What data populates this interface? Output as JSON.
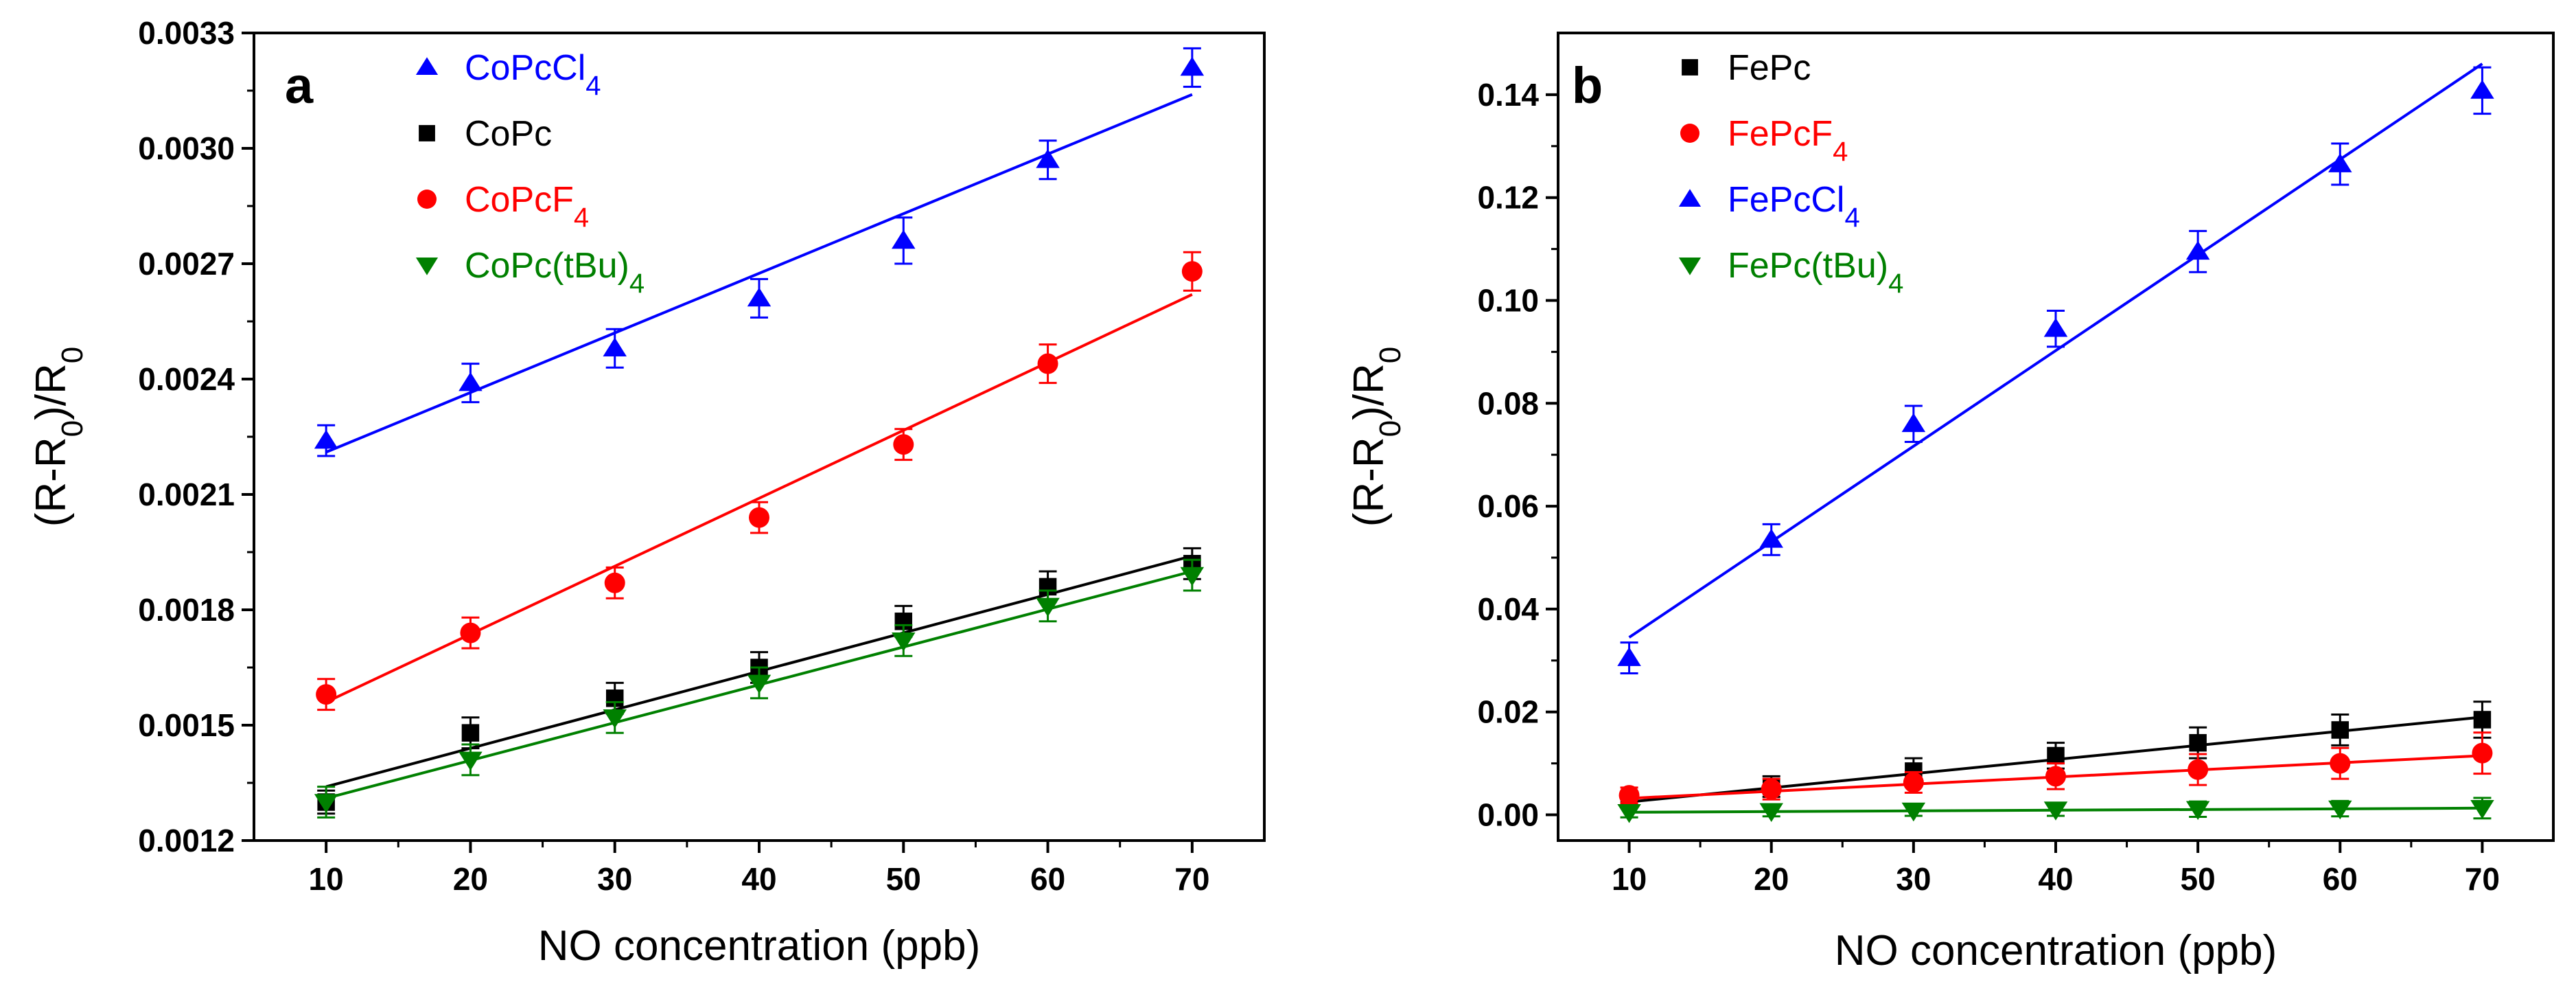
{
  "chart_data": [
    {
      "type": "scatter",
      "panel_label": "a",
      "xlabel": "NO concentration (ppb)",
      "ylabel": "(R-R0)/R0",
      "ylabel_parts": [
        "(R-R",
        "0",
        ")/R",
        "0"
      ],
      "xlim": [
        5,
        75
      ],
      "ylim": [
        0.0012,
        0.0033
      ],
      "xticks": [
        10,
        20,
        30,
        40,
        50,
        60,
        70
      ],
      "xtick_labels": [
        "10",
        "20",
        "30",
        "40",
        "50",
        "60",
        "70"
      ],
      "yticks": [
        0.0012,
        0.0015,
        0.0018,
        0.0021,
        0.0024,
        0.0027,
        0.003,
        0.0033
      ],
      "ytick_labels": [
        "0.0012",
        "0.0015",
        "0.0018",
        "0.0021",
        "0.0024",
        "0.0027",
        "0.0030",
        "0.0033"
      ],
      "legend_position": "top-left",
      "series": [
        {
          "name": "CoPcCl4",
          "legend_base": "CoPcCl",
          "legend_sub": "4",
          "color": "#0000ff",
          "marker": "triangle-up",
          "x": [
            10,
            20,
            30,
            40,
            50,
            60,
            70
          ],
          "values": [
            0.00224,
            0.00239,
            0.00248,
            0.00261,
            0.00276,
            0.00297,
            0.00321
          ],
          "errors": [
            4e-05,
            5e-05,
            5e-05,
            5e-05,
            6e-05,
            5e-05,
            5e-05
          ],
          "fit": [
            0.00221,
            0.00314
          ]
        },
        {
          "name": "CoPc",
          "legend_base": "CoPc",
          "legend_sub": "",
          "color": "#000000",
          "marker": "square",
          "x": [
            10,
            20,
            30,
            40,
            50,
            60,
            70
          ],
          "values": [
            0.0013,
            0.00148,
            0.00157,
            0.00165,
            0.00177,
            0.00186,
            0.00192
          ],
          "errors": [
            3e-05,
            4e-05,
            4e-05,
            4e-05,
            4e-05,
            4e-05,
            4e-05
          ],
          "fit": [
            0.00134,
            0.00194
          ]
        },
        {
          "name": "CoPcF4",
          "legend_base": "CoPcF",
          "legend_sub": "4",
          "color": "#ff0000",
          "marker": "circle",
          "x": [
            10,
            20,
            30,
            40,
            50,
            60,
            70
          ],
          "values": [
            0.00158,
            0.00174,
            0.00187,
            0.00204,
            0.00223,
            0.00244,
            0.00268
          ],
          "errors": [
            4e-05,
            4e-05,
            4e-05,
            4e-05,
            4e-05,
            5e-05,
            5e-05
          ],
          "fit": [
            0.00156,
            0.00262
          ]
        },
        {
          "name": "CoPc(tBu)4",
          "legend_base": "CoPc(tBu)",
          "legend_sub": "4",
          "color": "#008000",
          "marker": "triangle-down",
          "x": [
            10,
            20,
            30,
            40,
            50,
            60,
            70
          ],
          "values": [
            0.0013,
            0.00141,
            0.00152,
            0.00161,
            0.00172,
            0.00181,
            0.00189
          ],
          "errors": [
            4e-05,
            4e-05,
            4e-05,
            4e-05,
            4e-05,
            4e-05,
            4e-05
          ],
          "fit": [
            0.00131,
            0.0019
          ]
        }
      ]
    },
    {
      "type": "scatter",
      "panel_label": "b",
      "xlabel": "NO concentration (ppb)",
      "ylabel": "(R-R0)/R0",
      "ylabel_parts": [
        "(R-R",
        "0",
        ")/R",
        "0"
      ],
      "xlim": [
        5,
        75
      ],
      "ylim": [
        -0.005,
        0.152
      ],
      "xticks": [
        10,
        20,
        30,
        40,
        50,
        60,
        70
      ],
      "xtick_labels": [
        "10",
        "20",
        "30",
        "40",
        "50",
        "60",
        "70"
      ],
      "yticks": [
        0.0,
        0.02,
        0.04,
        0.06,
        0.08,
        0.1,
        0.12,
        0.14
      ],
      "ytick_labels": [
        "0.00",
        "0.02",
        "0.04",
        "0.06",
        "0.08",
        "0.10",
        "0.12",
        "0.14"
      ],
      "legend_position": "top-left",
      "series": [
        {
          "name": "FePc",
          "legend_base": "FePc",
          "legend_sub": "",
          "color": "#000000",
          "marker": "square",
          "x": [
            10,
            20,
            30,
            40,
            50,
            60,
            70
          ],
          "values": [
            0.003,
            0.0055,
            0.0085,
            0.0115,
            0.014,
            0.0165,
            0.0185
          ],
          "errors": [
            0.0015,
            0.002,
            0.0025,
            0.0025,
            0.003,
            0.003,
            0.0035
          ],
          "fit": [
            0.0025,
            0.019
          ]
        },
        {
          "name": "FePcF4",
          "legend_base": "FePcF",
          "legend_sub": "4",
          "color": "#ff0000",
          "marker": "circle",
          "x": [
            10,
            20,
            30,
            40,
            50,
            60,
            70
          ],
          "values": [
            0.0038,
            0.005,
            0.0063,
            0.0075,
            0.0088,
            0.01,
            0.012
          ],
          "errors": [
            0.0015,
            0.002,
            0.002,
            0.0025,
            0.003,
            0.003,
            0.004
          ],
          "fit": [
            0.0032,
            0.0115
          ]
        },
        {
          "name": "FePcCl4",
          "legend_base": "FePcCl",
          "legend_sub": "4",
          "color": "#0000ff",
          "marker": "triangle-up",
          "x": [
            10,
            20,
            30,
            40,
            50,
            60,
            70
          ],
          "values": [
            0.0305,
            0.0535,
            0.076,
            0.0945,
            0.1095,
            0.1265,
            0.1408
          ],
          "errors": [
            0.003,
            0.003,
            0.0035,
            0.0035,
            0.004,
            0.004,
            0.0045
          ],
          "fit": [
            0.0345,
            0.146
          ]
        },
        {
          "name": "FePc(tBu)4",
          "legend_base": "FePc(tBu)",
          "legend_sub": "4",
          "color": "#008000",
          "marker": "triangle-down",
          "x": [
            10,
            20,
            30,
            40,
            50,
            60,
            70
          ],
          "values": [
            0.0005,
            0.0007,
            0.0008,
            0.001,
            0.0011,
            0.0012,
            0.0013
          ],
          "errors": [
            0.001,
            0.001,
            0.001,
            0.0012,
            0.0015,
            0.0015,
            0.002
          ],
          "fit": [
            0.0005,
            0.0013
          ]
        }
      ]
    }
  ]
}
